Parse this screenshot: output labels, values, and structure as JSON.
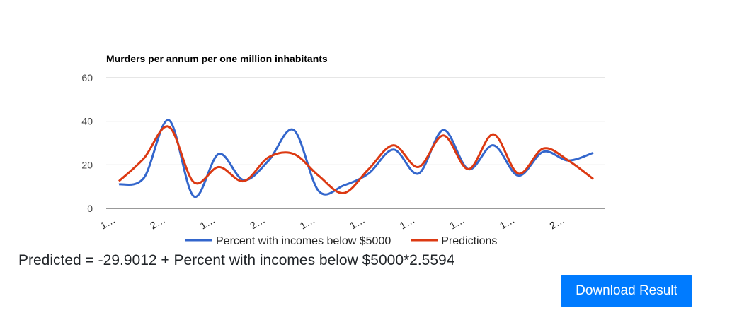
{
  "chart_data": {
    "type": "line",
    "title": "Murders per annum per one million inhabitants",
    "categories": [
      "1…",
      null,
      "2…",
      null,
      "1…",
      null,
      "2…",
      null,
      "1…",
      null,
      "1…",
      null,
      "1…",
      null,
      "1…",
      null,
      "1…",
      null,
      "2…",
      null
    ],
    "series": [
      {
        "name": "Percent with incomes below $5000",
        "color": "#3366cc",
        "values": [
          11,
          14,
          40.5,
          5.5,
          25,
          13,
          22,
          36,
          8,
          10.5,
          16,
          27,
          16,
          36,
          18,
          29,
          15,
          26,
          22,
          25.5
        ]
      },
      {
        "name": "Predictions",
        "color": "#dc3912",
        "values": [
          12.5,
          23,
          37.5,
          12,
          19,
          12.5,
          23.5,
          25,
          15,
          7,
          18,
          29,
          19,
          33.5,
          18,
          34,
          16,
          27.5,
          22,
          13.5
        ]
      }
    ],
    "ylim": [
      0,
      60
    ],
    "yticks": [
      0,
      20,
      40,
      60
    ],
    "grid": true,
    "legend": "bottom"
  },
  "equation": "Predicted = -29.9012 + Percent with incomes below $5000*2.5594",
  "button": "Download Result"
}
